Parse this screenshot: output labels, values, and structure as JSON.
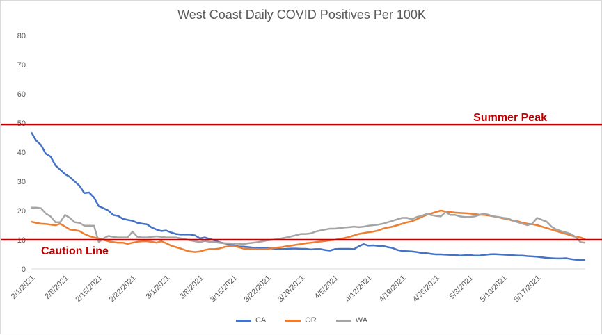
{
  "chart_data": {
    "type": "line",
    "title": "West Coast Daily COVID Positives Per 100K",
    "ylim": [
      0,
      80
    ],
    "y_ticks": [
      0,
      10,
      20,
      30,
      40,
      50,
      60,
      70,
      80
    ],
    "x_tick_labels": [
      "2/1/2021",
      "2/8/2021",
      "2/15/2021",
      "2/22/2021",
      "3/1/2021",
      "3/8/2021",
      "3/15/2021",
      "3/22/2021",
      "3/29/2021",
      "4/5/2021",
      "4/12/2021",
      "4/19/2021",
      "4/26/2021",
      "5/3/2021",
      "5/10/2021",
      "5/17/2021"
    ],
    "x_start": "2/1/2021",
    "grid": false,
    "legend_position": "bottom",
    "reference_lines": [
      {
        "label": "Summer Peak",
        "value": 49.5,
        "color": "#c00000"
      },
      {
        "label": "Caution Line",
        "value": 10,
        "color": "#c00000"
      }
    ],
    "series": [
      {
        "name": "CA",
        "color": "#4472c4",
        "values": [
          46.8,
          44.0,
          42.5,
          39.5,
          38.5,
          35.5,
          34.0,
          32.5,
          31.5,
          30.0,
          28.5,
          26.0,
          26.2,
          24.5,
          21.5,
          20.8,
          20.0,
          18.5,
          18.2,
          17.2,
          16.8,
          16.5,
          15.8,
          15.5,
          15.3,
          14.2,
          13.5,
          13.0,
          13.2,
          12.5,
          12.0,
          11.8,
          11.8,
          11.8,
          11.5,
          10.5,
          10.8,
          10.3,
          9.8,
          9.2,
          8.8,
          8.5,
          8.2,
          7.7,
          7.7,
          7.5,
          7.3,
          7.2,
          7.3,
          7.3,
          7.0,
          6.9,
          6.8,
          6.9,
          7.0,
          7.0,
          6.9,
          6.9,
          6.7,
          6.8,
          6.8,
          6.5,
          6.3,
          6.8,
          6.9,
          6.9,
          6.9,
          6.8,
          7.8,
          8.5,
          8.0,
          8.1,
          7.9,
          7.9,
          7.5,
          7.2,
          6.5,
          6.2,
          6.1,
          6.0,
          5.8,
          5.5,
          5.4,
          5.2,
          5.0,
          5.0,
          4.9,
          4.8,
          4.8,
          4.6,
          4.7,
          4.8,
          4.6,
          4.6,
          4.8,
          5.0,
          5.1,
          5.0,
          4.9,
          4.8,
          4.7,
          4.6,
          4.6,
          4.4,
          4.3,
          4.2,
          4.0,
          3.8,
          3.7,
          3.6,
          3.6,
          3.7,
          3.4,
          3.2,
          3.1,
          3.0
        ]
      },
      {
        "name": "OR",
        "color": "#ed7d31",
        "values": [
          16.2,
          15.8,
          15.5,
          15.4,
          15.2,
          15.0,
          15.5,
          14.5,
          13.5,
          13.3,
          13.0,
          12.0,
          11.3,
          10.8,
          10.5,
          10.0,
          9.5,
          9.2,
          9.0,
          9.0,
          8.6,
          9.0,
          9.3,
          9.5,
          9.5,
          9.3,
          9.0,
          9.5,
          8.8,
          8.0,
          7.5,
          7.0,
          6.4,
          6.0,
          5.8,
          6.0,
          6.5,
          6.8,
          6.8,
          7.0,
          7.5,
          7.8,
          7.8,
          7.5,
          7.0,
          6.9,
          6.9,
          6.8,
          6.8,
          6.9,
          7.1,
          7.3,
          7.5,
          7.8,
          8.0,
          8.3,
          8.5,
          8.8,
          9.0,
          9.2,
          9.4,
          9.6,
          9.8,
          10.0,
          10.3,
          10.6,
          11.0,
          11.5,
          12.0,
          12.3,
          12.6,
          12.8,
          13.2,
          13.8,
          14.2,
          14.5,
          15.0,
          15.5,
          16.0,
          16.3,
          17.0,
          17.8,
          18.5,
          19.0,
          19.5,
          20.0,
          19.7,
          19.5,
          19.3,
          19.2,
          19.1,
          19.0,
          18.8,
          18.6,
          18.5,
          18.3,
          18.0,
          17.7,
          17.3,
          17.0,
          16.5,
          16.3,
          15.8,
          15.5,
          15.3,
          15.0,
          14.5,
          14.0,
          13.5,
          13.0,
          12.5,
          12.0,
          11.5,
          11.0,
          10.8,
          10.2
        ]
      },
      {
        "name": "WA",
        "color": "#a5a5a5",
        "values": [
          21.0,
          21.0,
          20.8,
          19.0,
          18.0,
          16.0,
          16.0,
          18.5,
          17.5,
          16.0,
          15.8,
          14.8,
          14.8,
          14.8,
          9.2,
          10.5,
          11.3,
          11.0,
          10.8,
          10.8,
          10.8,
          12.8,
          11.0,
          10.8,
          10.8,
          11.0,
          11.2,
          11.0,
          10.8,
          10.8,
          10.8,
          10.5,
          10.2,
          9.8,
          9.5,
          9.2,
          9.6,
          9.3,
          9.2,
          9.0,
          8.8,
          8.8,
          8.7,
          8.7,
          8.5,
          8.8,
          9.0,
          9.2,
          9.5,
          9.8,
          10.0,
          10.2,
          10.5,
          10.8,
          11.2,
          11.6,
          12.0,
          12.0,
          12.2,
          12.8,
          13.2,
          13.5,
          13.8,
          13.8,
          14.0,
          14.2,
          14.3,
          14.5,
          14.3,
          14.5,
          14.8,
          15.0,
          15.2,
          15.5,
          16.0,
          16.5,
          17.0,
          17.5,
          17.5,
          17.0,
          17.8,
          18.2,
          18.8,
          18.5,
          18.2,
          18.0,
          19.5,
          18.5,
          18.5,
          18.0,
          17.8,
          17.8,
          18.0,
          18.5,
          19.0,
          18.5,
          18.0,
          17.8,
          17.5,
          17.3,
          16.5,
          16.0,
          15.5,
          15.0,
          15.5,
          17.5,
          16.8,
          16.2,
          14.5,
          13.5,
          13.0,
          12.5,
          12.0,
          11.0,
          9.2,
          9.0
        ]
      }
    ]
  }
}
